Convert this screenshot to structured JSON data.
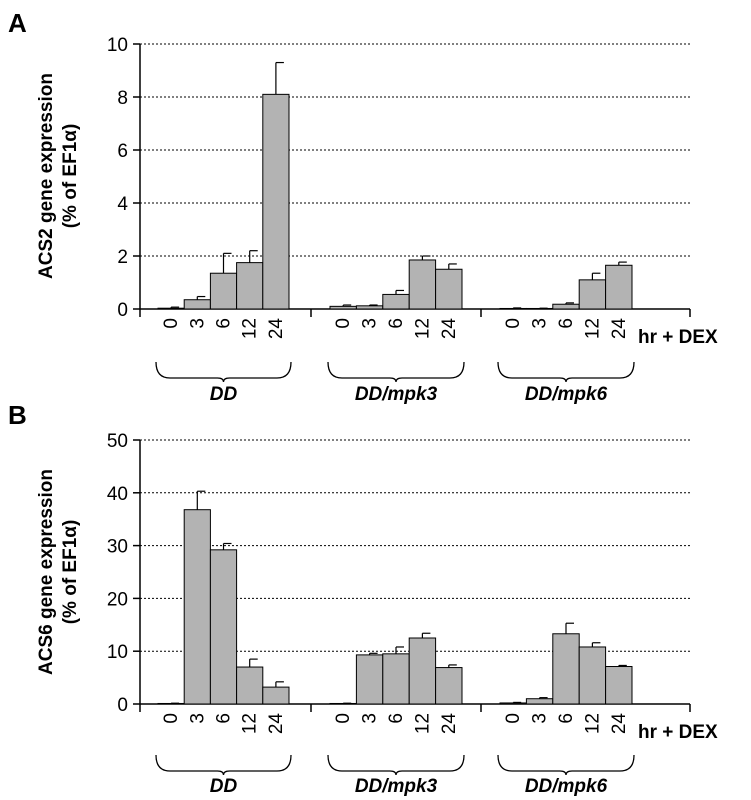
{
  "figure": {
    "x_unit_label": "hr + DEX",
    "bar_fill": "#b3b3b3",
    "bar_stroke": "#000000",
    "grid_color": "#000000"
  },
  "chart_data": [
    {
      "panel_label": "A",
      "type": "bar",
      "ylabel": "ACS2 gene expression (% of EF1α)",
      "ylim": [
        0,
        10
      ],
      "yticks": [
        0,
        2,
        4,
        6,
        8,
        10
      ],
      "grid": true,
      "xlabel": "hr + DEX",
      "groups": [
        {
          "name": "DD",
          "categories": [
            "0",
            "3",
            "6",
            "12",
            "24"
          ],
          "values": [
            0.03,
            0.35,
            1.35,
            1.75,
            8.1
          ],
          "errors": [
            0.04,
            0.12,
            0.75,
            0.45,
            1.2
          ]
        },
        {
          "name": "DD/mpk3",
          "categories": [
            "0",
            "3",
            "6",
            "12",
            "24"
          ],
          "values": [
            0.1,
            0.12,
            0.55,
            1.85,
            1.5
          ],
          "errors": [
            0.05,
            0.03,
            0.15,
            0.15,
            0.2
          ]
        },
        {
          "name": "DD/mpk6",
          "categories": [
            "0",
            "3",
            "6",
            "12",
            "24"
          ],
          "values": [
            0.02,
            0.02,
            0.18,
            1.1,
            1.65
          ],
          "errors": [
            0.02,
            0.01,
            0.05,
            0.25,
            0.12
          ]
        }
      ]
    },
    {
      "panel_label": "B",
      "type": "bar",
      "ylabel": "ACS6 gene expression (% of EF1α)",
      "ylim": [
        0,
        50
      ],
      "yticks": [
        0,
        10,
        20,
        30,
        40,
        50
      ],
      "grid": true,
      "xlabel": "hr + DEX",
      "groups": [
        {
          "name": "DD",
          "categories": [
            "0",
            "3",
            "6",
            "12",
            "24"
          ],
          "values": [
            0.1,
            36.8,
            29.2,
            7.0,
            3.2
          ],
          "errors": [
            0.05,
            3.5,
            1.2,
            1.5,
            1.0
          ]
        },
        {
          "name": "DD/mpk3",
          "categories": [
            "0",
            "3",
            "6",
            "12",
            "24"
          ],
          "values": [
            0.1,
            9.3,
            9.5,
            12.5,
            6.9
          ],
          "errors": [
            0.05,
            0.3,
            1.3,
            0.9,
            0.5
          ]
        },
        {
          "name": "DD/mpk6",
          "categories": [
            "0",
            "3",
            "6",
            "12",
            "24"
          ],
          "values": [
            0.2,
            1.0,
            13.3,
            10.8,
            7.1
          ],
          "errors": [
            0.1,
            0.2,
            2.0,
            0.8,
            0.2
          ]
        }
      ]
    }
  ]
}
